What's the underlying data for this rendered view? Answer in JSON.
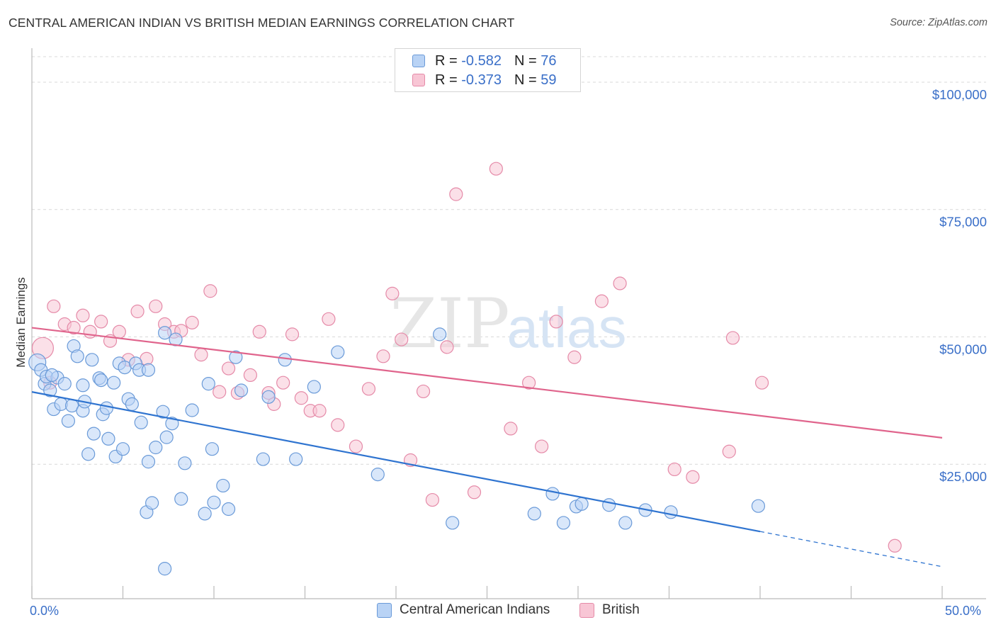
{
  "title": "CENTRAL AMERICAN INDIAN VS BRITISH MEDIAN EARNINGS CORRELATION CHART",
  "source": "Source: ZipAtlas.com",
  "watermark": {
    "zip": "ZIP",
    "atlas": "atlas"
  },
  "legend": {
    "r_label": "R = ",
    "n_label": "N = ",
    "rows": [
      {
        "r": "-0.582",
        "n": "76"
      },
      {
        "r": "-0.373",
        "n": "59"
      }
    ]
  },
  "colors": {
    "blue_fill": "#b9d3f5",
    "blue_stroke": "#6a9ad8",
    "blue_line": "#2f74d0",
    "pink_fill": "#f8c6d5",
    "pink_stroke": "#e58aa8",
    "pink_line": "#e0648c",
    "tick_text": "#3a6fc8",
    "grid": "#d9d9d9"
  },
  "chart_data": {
    "type": "scatter",
    "title": "CENTRAL AMERICAN INDIAN VS BRITISH MEDIAN EARNINGS CORRELATION CHART",
    "xlabel": "",
    "ylabel": "Median Earnings",
    "xlim": [
      0,
      50
    ],
    "ylim": [
      0,
      105000
    ],
    "x_tick_labels": [
      "0.0%",
      "50.0%"
    ],
    "y_ticks": [
      25000,
      50000,
      75000,
      100000
    ],
    "y_tick_labels": [
      "$25,000",
      "$50,000",
      "$75,000",
      "$100,000"
    ],
    "grid": "horizontal dashed",
    "legend_position": "top-center",
    "series": [
      {
        "name": "Central American Indians",
        "color": "#6a9ad8",
        "trend": {
          "x": [
            0,
            40
          ],
          "y": [
            39200,
            11800
          ],
          "dashed_extension_to": [
            50,
            4900
          ]
        },
        "points": [
          [
            0.3,
            45000
          ],
          [
            0.5,
            43500
          ],
          [
            0.7,
            40800
          ],
          [
            0.8,
            42200
          ],
          [
            1.0,
            39500
          ],
          [
            1.2,
            35800
          ],
          [
            1.4,
            42000
          ],
          [
            1.6,
            36800
          ],
          [
            1.8,
            40800
          ],
          [
            2.0,
            33500
          ],
          [
            2.2,
            36500
          ],
          [
            2.3,
            48200
          ],
          [
            2.5,
            46200
          ],
          [
            2.8,
            40500
          ],
          [
            2.8,
            35500
          ],
          [
            2.9,
            37300
          ],
          [
            3.1,
            27000
          ],
          [
            3.3,
            45500
          ],
          [
            3.4,
            31000
          ],
          [
            3.7,
            41900
          ],
          [
            3.8,
            41500
          ],
          [
            3.9,
            34800
          ],
          [
            4.1,
            36000
          ],
          [
            4.2,
            30000
          ],
          [
            4.5,
            41000
          ],
          [
            4.6,
            26500
          ],
          [
            4.8,
            44800
          ],
          [
            5.0,
            28000
          ],
          [
            5.1,
            44000
          ],
          [
            5.3,
            37800
          ],
          [
            5.5,
            36800
          ],
          [
            5.7,
            44800
          ],
          [
            5.9,
            43500
          ],
          [
            6.0,
            33200
          ],
          [
            6.3,
            15600
          ],
          [
            6.4,
            25500
          ],
          [
            6.4,
            43500
          ],
          [
            6.6,
            17400
          ],
          [
            6.8,
            28300
          ],
          [
            7.2,
            35300
          ],
          [
            7.3,
            4500
          ],
          [
            7.4,
            30300
          ],
          [
            7.7,
            33000
          ],
          [
            8.2,
            18200
          ],
          [
            8.4,
            25200
          ],
          [
            8.8,
            35600
          ],
          [
            9.5,
            15300
          ],
          [
            9.7,
            40800
          ],
          [
            9.9,
            28000
          ],
          [
            10.0,
            17500
          ],
          [
            10.5,
            20800
          ],
          [
            10.8,
            16200
          ],
          [
            11.2,
            46000
          ],
          [
            11.5,
            39500
          ],
          [
            12.7,
            26000
          ],
          [
            13.0,
            38200
          ],
          [
            13.9,
            45500
          ],
          [
            14.5,
            26000
          ],
          [
            15.5,
            40200
          ],
          [
            16.8,
            47000
          ],
          [
            19.0,
            23000
          ],
          [
            22.4,
            50500
          ],
          [
            23.1,
            13500
          ],
          [
            27.6,
            15300
          ],
          [
            28.6,
            19200
          ],
          [
            29.2,
            13500
          ],
          [
            29.9,
            16700
          ],
          [
            30.2,
            17200
          ],
          [
            31.7,
            17000
          ],
          [
            32.6,
            13500
          ],
          [
            33.7,
            16000
          ],
          [
            35.1,
            15600
          ],
          [
            39.9,
            16800
          ],
          [
            7.3,
            50800
          ],
          [
            7.9,
            49500
          ],
          [
            1.1,
            42500
          ]
        ]
      },
      {
        "name": "British",
        "color": "#e58aa8",
        "trend": {
          "x": [
            0,
            50
          ],
          "y": [
            51800,
            30200
          ]
        },
        "points": [
          [
            0.6,
            47800
          ],
          [
            1.0,
            41000
          ],
          [
            1.2,
            56000
          ],
          [
            1.8,
            52500
          ],
          [
            2.3,
            51800
          ],
          [
            2.8,
            54200
          ],
          [
            3.2,
            51000
          ],
          [
            3.8,
            53000
          ],
          [
            4.3,
            49200
          ],
          [
            4.8,
            51000
          ],
          [
            5.3,
            45500
          ],
          [
            5.8,
            55000
          ],
          [
            6.3,
            45700
          ],
          [
            6.8,
            56000
          ],
          [
            7.3,
            52500
          ],
          [
            7.8,
            51000
          ],
          [
            8.2,
            51200
          ],
          [
            8.8,
            52800
          ],
          [
            9.3,
            46500
          ],
          [
            9.8,
            59000
          ],
          [
            10.3,
            39200
          ],
          [
            10.8,
            43800
          ],
          [
            11.3,
            39000
          ],
          [
            12.0,
            42500
          ],
          [
            12.5,
            51000
          ],
          [
            13.0,
            39000
          ],
          [
            13.3,
            36800
          ],
          [
            13.8,
            41000
          ],
          [
            14.3,
            50500
          ],
          [
            14.8,
            38000
          ],
          [
            15.3,
            35500
          ],
          [
            15.8,
            35500
          ],
          [
            16.3,
            53500
          ],
          [
            16.8,
            32700
          ],
          [
            17.8,
            28500
          ],
          [
            18.5,
            39800
          ],
          [
            19.3,
            46200
          ],
          [
            19.8,
            58500
          ],
          [
            20.3,
            49500
          ],
          [
            20.8,
            25800
          ],
          [
            21.5,
            39300
          ],
          [
            22.0,
            18000
          ],
          [
            22.8,
            48000
          ],
          [
            23.3,
            78000
          ],
          [
            24.3,
            19500
          ],
          [
            25.5,
            83000
          ],
          [
            26.3,
            32000
          ],
          [
            27.3,
            41000
          ],
          [
            28.0,
            28500
          ],
          [
            28.8,
            53000
          ],
          [
            29.8,
            46000
          ],
          [
            31.3,
            57000
          ],
          [
            32.3,
            60500
          ],
          [
            35.3,
            24000
          ],
          [
            36.3,
            22500
          ],
          [
            38.3,
            27500
          ],
          [
            38.5,
            49800
          ],
          [
            40.1,
            41000
          ],
          [
            47.4,
            9000
          ]
        ]
      }
    ]
  }
}
